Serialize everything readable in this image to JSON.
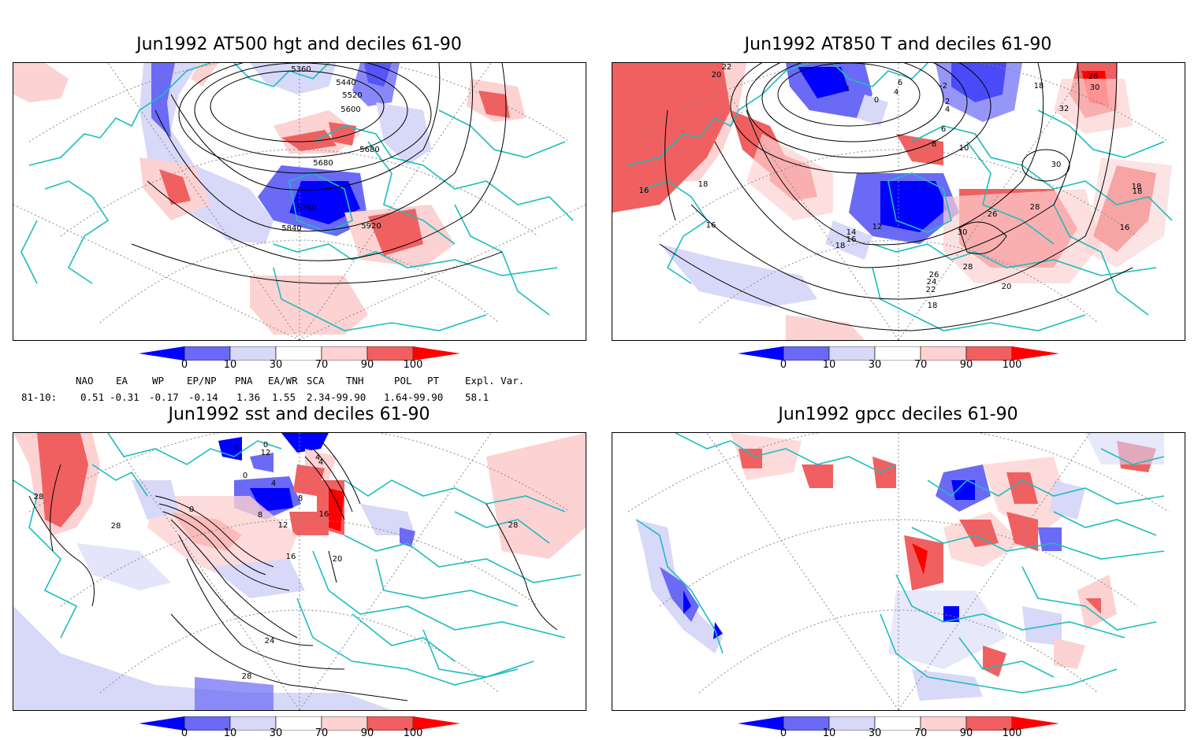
{
  "panels": [
    {
      "title": "Jun1992 AT500 hgt and deciles 61-90"
    },
    {
      "title": "Jun1992 AT850 T and deciles 61-90"
    },
    {
      "title": "Jun1992 sst and deciles 61-90"
    },
    {
      "title": "Jun1992 gpcc deciles 61-90"
    }
  ],
  "colorbar": {
    "ticks": [
      "0",
      "10",
      "30",
      "70",
      "90",
      "100"
    ],
    "colors": [
      "#0000ff",
      "#6a6af6",
      "#d8d8f8",
      "#ffffff",
      "#fcd2d2",
      "#f06060",
      "#ff0000"
    ]
  },
  "contour_labels": {
    "p1": [
      "5360",
      "5440",
      "5520",
      "5600",
      "5680",
      "5680",
      "5760",
      "5840",
      "5920"
    ],
    "p2": [
      "22",
      "20",
      "6",
      "-4",
      "0",
      "4",
      "-2",
      "2",
      "4",
      "6",
      "8",
      "10",
      "18",
      "26",
      "30",
      "32",
      "30",
      "18",
      "16",
      "18",
      "16",
      "12",
      "16",
      "14",
      "18",
      "26",
      "28",
      "30",
      "28",
      "26",
      "24",
      "22",
      "20",
      "18",
      "18",
      "16"
    ],
    "p3": [
      "0",
      "0",
      "12",
      "4",
      "0",
      "4",
      "8",
      "12",
      "16",
      "8",
      "0",
      "4",
      "28",
      "28",
      "16",
      "20",
      "28",
      "24",
      "28"
    ]
  },
  "indices": {
    "headers": [
      "NAO",
      "EA",
      "WP",
      "EP/NP",
      "PNA",
      "EA/WR",
      "SCA",
      "TNH",
      "POL",
      "PT",
      "Expl. Var."
    ],
    "row_label": "81-10:",
    "values": [
      "0.51",
      "-0.31",
      "-0.17",
      "-0.14",
      "1.36",
      "1.55",
      "2.34-99.90",
      "1.64-99.90",
      "58.1"
    ]
  }
}
